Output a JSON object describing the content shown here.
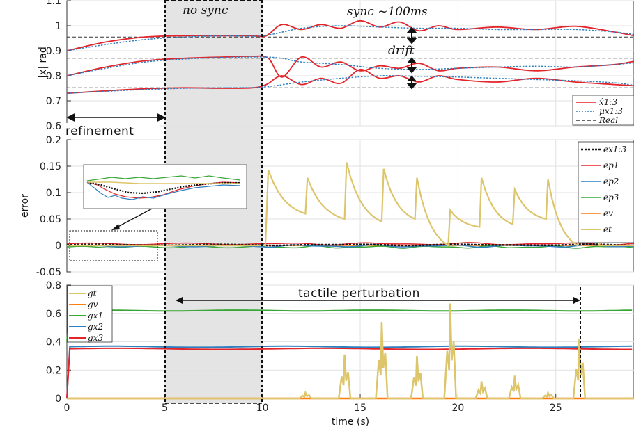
{
  "chart_data": [
    {
      "type": "line",
      "ylabel": "|x| rad",
      "xlim": [
        0,
        29
      ],
      "ylim": [
        0.6,
        1.1
      ],
      "yticks": [
        "0.6",
        "0.7",
        "0.8",
        "0.9",
        "1",
        "1.1"
      ],
      "grid": true,
      "legend_position": "bottom-right",
      "legend": [
        "x̂1:3",
        "μx1:3",
        "Real"
      ],
      "real_values": [
        0.955,
        0.87,
        0.752
      ],
      "annotations": {
        "no_sync": "no sync",
        "sync": "sync ~100ms",
        "drift": "drift",
        "refinement": "refinement"
      },
      "series": [
        {
          "name": "x̂1",
          "x": [
            0,
            2,
            4,
            6,
            8,
            9.5,
            10.2,
            11,
            12,
            13,
            14,
            15,
            16,
            17,
            18,
            19,
            20,
            22,
            24,
            26,
            28,
            29
          ],
          "values": [
            0.9,
            0.935,
            0.955,
            0.96,
            0.96,
            0.96,
            0.96,
            1.005,
            0.985,
            1.005,
            0.99,
            1.02,
            0.995,
            1.015,
            0.98,
            1.0,
            0.985,
            0.995,
            0.985,
            0.998,
            0.975,
            0.96
          ]
        },
        {
          "name": "μ1",
          "x": [
            0,
            2,
            4,
            6,
            8,
            10,
            12,
            14,
            16,
            18,
            20,
            22,
            24,
            26,
            28,
            29
          ],
          "values": [
            0.9,
            0.925,
            0.945,
            0.955,
            0.96,
            0.96,
            0.99,
            1.0,
            0.995,
            0.99,
            0.99,
            0.985,
            0.985,
            0.985,
            0.975,
            0.965
          ]
        },
        {
          "name": "x̂2",
          "x": [
            0,
            2,
            4,
            6,
            8,
            9.5,
            10.3,
            11,
            12,
            13,
            14,
            15,
            16,
            17,
            18,
            19,
            20,
            22,
            24,
            26,
            28,
            29
          ],
          "values": [
            0.8,
            0.835,
            0.86,
            0.87,
            0.875,
            0.878,
            0.87,
            0.795,
            0.875,
            0.835,
            0.855,
            0.82,
            0.84,
            0.83,
            0.85,
            0.82,
            0.83,
            0.835,
            0.82,
            0.835,
            0.845,
            0.858
          ]
        },
        {
          "name": "μ2",
          "x": [
            0,
            2,
            4,
            6,
            8,
            10,
            11,
            12,
            14,
            16,
            18,
            20,
            22,
            24,
            26,
            28,
            29
          ],
          "values": [
            0.8,
            0.83,
            0.855,
            0.867,
            0.873,
            0.875,
            0.87,
            0.855,
            0.845,
            0.83,
            0.825,
            0.83,
            0.835,
            0.838,
            0.835,
            0.845,
            0.852
          ]
        },
        {
          "name": "x̂3",
          "x": [
            0,
            2,
            4,
            6,
            8,
            9.5,
            10.2,
            11,
            12,
            13,
            14,
            15,
            16,
            17,
            18,
            19,
            20,
            22,
            24,
            26,
            28,
            29
          ],
          "values": [
            0.73,
            0.74,
            0.748,
            0.752,
            0.75,
            0.752,
            0.765,
            0.8,
            0.765,
            0.79,
            0.77,
            0.825,
            0.79,
            0.8,
            0.775,
            0.8,
            0.785,
            0.775,
            0.79,
            0.775,
            0.765,
            0.76
          ]
        },
        {
          "name": "μ3",
          "x": [
            0,
            2,
            4,
            6,
            8,
            10,
            12,
            14,
            16,
            18,
            20,
            22,
            24,
            26,
            28,
            29
          ],
          "values": [
            0.73,
            0.738,
            0.745,
            0.75,
            0.752,
            0.755,
            0.775,
            0.79,
            0.8,
            0.798,
            0.795,
            0.79,
            0.785,
            0.78,
            0.772,
            0.762
          ]
        }
      ]
    },
    {
      "type": "line",
      "ylabel": "error",
      "xlim": [
        0,
        29
      ],
      "ylim": [
        -0.05,
        0.2
      ],
      "yticks": [
        "-0.05",
        "0",
        "0.05",
        "0.1",
        "0.15",
        "0.2"
      ],
      "grid": true,
      "legend_position": "top-right",
      "legend": [
        "ex1:3",
        "ep1",
        "ep2",
        "ep3",
        "ev",
        "et"
      ],
      "et_peaks": [
        [
          10.3,
          0.143
        ],
        [
          12.3,
          0.128
        ],
        [
          14.3,
          0.157
        ],
        [
          16.2,
          0.145
        ],
        [
          17.9,
          0.128
        ],
        [
          19.6,
          0.067
        ],
        [
          21.2,
          0.128
        ],
        [
          22.9,
          0.106
        ],
        [
          24.6,
          0.125
        ],
        [
          26.2,
          0.01
        ]
      ],
      "et_decay_end": [
        [
          12.2,
          0.06
        ],
        [
          14.2,
          0.05
        ],
        [
          16.1,
          0.045
        ],
        [
          17.8,
          0.05
        ],
        [
          19.5,
          0.0
        ],
        [
          21.1,
          0.035
        ],
        [
          22.8,
          0.04
        ],
        [
          24.5,
          0.05
        ],
        [
          26.1,
          0.0
        ]
      ]
    },
    {
      "type": "line",
      "xlabel": "time (s)",
      "xlim": [
        0,
        29
      ],
      "ylim": [
        0,
        0.8
      ],
      "xticks": [
        "0",
        "5",
        "10",
        "15",
        "20",
        "25"
      ],
      "yticks": [
        "0",
        "0.2",
        "0.4",
        "0.6",
        "0.8"
      ],
      "grid": true,
      "legend_position": "top-left",
      "legend": [
        "gt",
        "gv",
        "gx1",
        "gx2",
        "gx3"
      ],
      "annotation": "tactile perturbation",
      "levels": {
        "gx1": 0.62,
        "gx2": 0.365,
        "gx3": 0.35,
        "gv": 0.0
      },
      "gt_spikes": [
        [
          12.2,
          0.04
        ],
        [
          14.2,
          0.31
        ],
        [
          16.1,
          0.54
        ],
        [
          17.9,
          0.3
        ],
        [
          19.6,
          0.67
        ],
        [
          21.2,
          0.12
        ],
        [
          22.9,
          0.16
        ],
        [
          24.6,
          0.04
        ],
        [
          26.2,
          0.42
        ]
      ]
    }
  ],
  "colors": {
    "red": "#e3242b",
    "blue": "#2f7fbf",
    "green": "#3aa637",
    "orange": "#ff7f0e",
    "yellow": "#dcc56a",
    "shade": "#e6e6e6"
  }
}
